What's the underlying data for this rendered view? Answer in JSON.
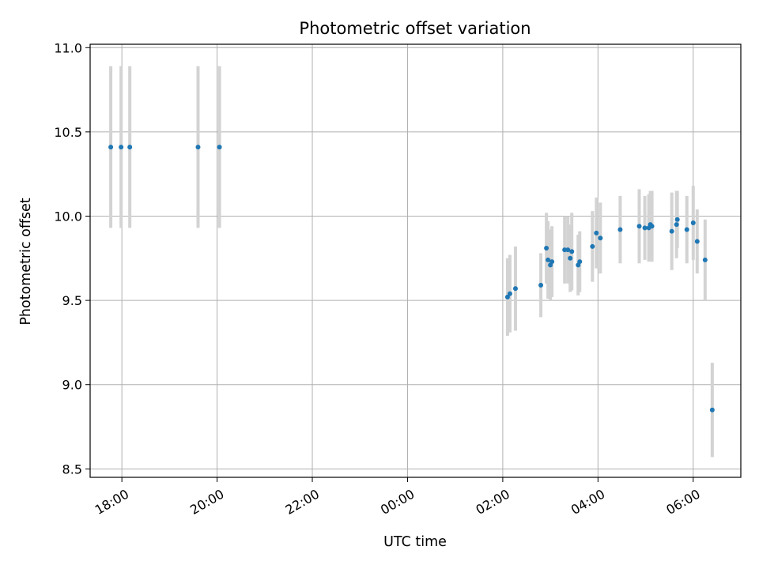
{
  "chart_data": {
    "type": "scatter",
    "title": "Photometric offset variation",
    "xlabel": "UTC time",
    "ylabel": "Photometric offset",
    "x_axis_kind": "time",
    "x_reference_date": "",
    "xlim": [
      "17:20",
      "31:00"
    ],
    "ylim": [
      8.45,
      11.02
    ],
    "x_ticks": [
      {
        "value": "18:00",
        "label": "18:00"
      },
      {
        "value": "20:00",
        "label": "20:00"
      },
      {
        "value": "22:00",
        "label": "22:00"
      },
      {
        "value": "24:00",
        "label": "00:00"
      },
      {
        "value": "26:00",
        "label": "02:00"
      },
      {
        "value": "28:00",
        "label": "04:00"
      },
      {
        "value": "30:00",
        "label": "06:00"
      }
    ],
    "y_ticks": [
      {
        "value": 8.5,
        "label": "8.5"
      },
      {
        "value": 9.0,
        "label": "9.0"
      },
      {
        "value": 9.5,
        "label": "9.5"
      },
      {
        "value": 10.0,
        "label": "10.0"
      },
      {
        "value": 10.5,
        "label": "10.5"
      },
      {
        "value": 11.0,
        "label": "11.0"
      }
    ],
    "grid": true,
    "marker_color": "#1f77b4",
    "errorbar_color": "#d3d3d3",
    "series": [
      {
        "points": [
          {
            "time": "17:46",
            "y": 10.41,
            "err": 0.48
          },
          {
            "time": "17:59",
            "y": 10.41,
            "err": 0.48
          },
          {
            "time": "18:10",
            "y": 10.41,
            "err": 0.48
          },
          {
            "time": "19:36",
            "y": 10.41,
            "err": 0.48
          },
          {
            "time": "20:03",
            "y": 10.41,
            "err": 0.48
          },
          {
            "time": "26:06",
            "y": 9.52,
            "err": 0.23
          },
          {
            "time": "26:09",
            "y": 9.54,
            "err": 0.23
          },
          {
            "time": "26:16",
            "y": 9.57,
            "err": 0.25
          },
          {
            "time": "26:48",
            "y": 9.59,
            "err": 0.19
          },
          {
            "time": "26:55",
            "y": 9.81,
            "err": 0.21
          },
          {
            "time": "26:57",
            "y": 9.74,
            "err": 0.23
          },
          {
            "time": "27:00",
            "y": 9.71,
            "err": 0.21
          },
          {
            "time": "27:02",
            "y": 9.73,
            "err": 0.21
          },
          {
            "time": "27:18",
            "y": 9.8,
            "err": 0.2
          },
          {
            "time": "27:22",
            "y": 9.8,
            "err": 0.2
          },
          {
            "time": "27:25",
            "y": 9.75,
            "err": 0.2
          },
          {
            "time": "27:27",
            "y": 9.79,
            "err": 0.23
          },
          {
            "time": "27:35",
            "y": 9.71,
            "err": 0.18
          },
          {
            "time": "27:37",
            "y": 9.73,
            "err": 0.18
          },
          {
            "time": "27:53",
            "y": 9.82,
            "err": 0.21
          },
          {
            "time": "27:58",
            "y": 9.9,
            "err": 0.21
          },
          {
            "time": "28:03",
            "y": 9.87,
            "err": 0.21
          },
          {
            "time": "28:28",
            "y": 9.92,
            "err": 0.2
          },
          {
            "time": "28:52",
            "y": 9.94,
            "err": 0.22
          },
          {
            "time": "28:59",
            "y": 9.93,
            "err": 0.19
          },
          {
            "time": "29:04",
            "y": 9.93,
            "err": 0.2
          },
          {
            "time": "29:06",
            "y": 9.95,
            "err": 0.2
          },
          {
            "time": "29:08",
            "y": 9.94,
            "err": 0.21
          },
          {
            "time": "29:33",
            "y": 9.91,
            "err": 0.23
          },
          {
            "time": "29:39",
            "y": 9.95,
            "err": 0.2
          },
          {
            "time": "29:40",
            "y": 9.98,
            "err": 0.17
          },
          {
            "time": "29:52",
            "y": 9.92,
            "err": 0.2
          },
          {
            "time": "30:00",
            "y": 9.96,
            "err": 0.22
          },
          {
            "time": "30:05",
            "y": 9.85,
            "err": 0.19
          },
          {
            "time": "30:15",
            "y": 9.74,
            "err": 0.24
          },
          {
            "time": "30:24",
            "y": 8.85,
            "err": 0.28
          }
        ]
      }
    ]
  }
}
